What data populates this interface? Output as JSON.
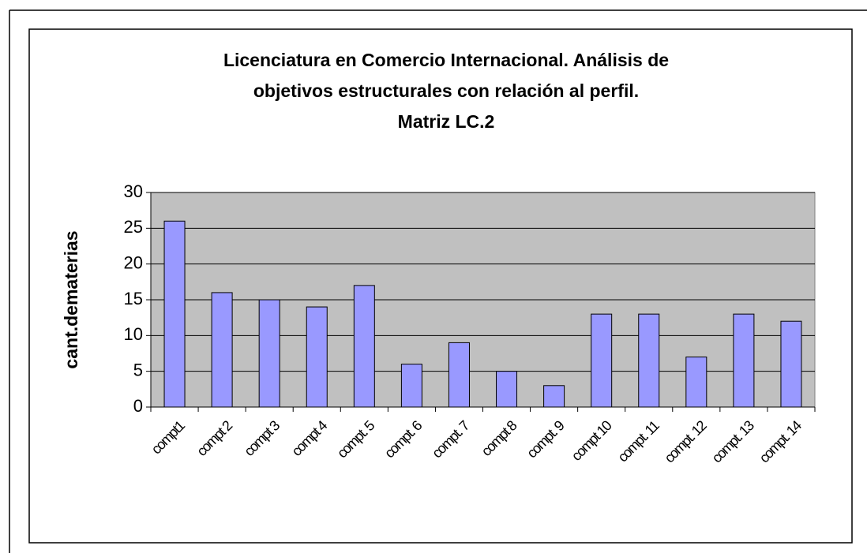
{
  "chart_data": {
    "type": "bar",
    "title": [
      "Licenciatura en Comercio Internacional. Análisis de",
      "objetivos estructurales con relación al perfil.",
      "Matriz LC.2"
    ],
    "y_label": "cant.dematerias",
    "categories": [
      "compt1",
      "compt 2",
      "compt 3",
      "compt 4",
      "compt. 5",
      "compt. 6",
      "compt. 7",
      "compt 8",
      "compt. 9",
      "compt 10",
      "compt. 11",
      "compt. 12",
      "compt. 13",
      "compt. 14"
    ],
    "values": [
      26,
      16,
      15,
      14,
      17,
      6,
      9,
      5,
      3,
      13,
      13,
      7,
      13,
      12
    ],
    "color": "#9999ff",
    "ylim": [
      0,
      30
    ],
    "yticks": [
      0,
      5,
      10,
      15,
      20,
      25,
      30
    ],
    "grid": true
  }
}
